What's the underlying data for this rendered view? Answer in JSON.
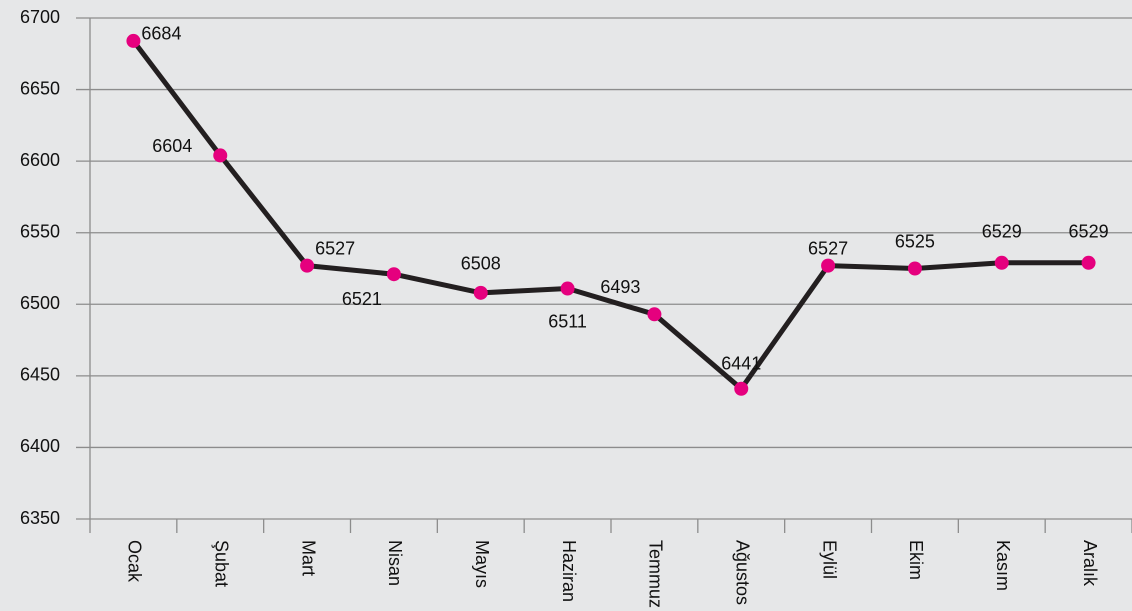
{
  "chart_data": {
    "type": "line",
    "categories": [
      "Ocak",
      "Şubat",
      "Mart",
      "Nisan",
      "Mayıs",
      "Haziran",
      "Temmuz",
      "Ağustos",
      "Eylül",
      "Ekim",
      "Kasım",
      "Aralık"
    ],
    "series": [
      {
        "color": "#231f20",
        "marker_color": "#e5007e",
        "values": [
          6684,
          6604,
          6527,
          6521,
          6508,
          6511,
          6493,
          6441,
          6527,
          6525,
          6529,
          6529
        ]
      }
    ],
    "ylim": [
      6350,
      6700
    ],
    "yticks": [
      6350,
      6400,
      6450,
      6500,
      6550,
      6600,
      6650,
      6700
    ],
    "grid": true
  }
}
